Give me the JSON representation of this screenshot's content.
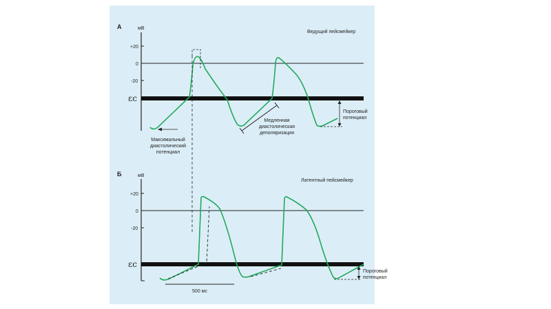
{
  "colors": {
    "background": "#dbeef7",
    "trace": "#22a85a",
    "axis": "#222222",
    "threshold_bar": "#111111"
  },
  "panel_a": {
    "letter": "А",
    "unit": "мВ",
    "ticks": [
      "+20",
      "0",
      "-20"
    ],
    "title": "Ведущий пейсмейкер",
    "threshold_symbol": "εc",
    "label_max_diastolic": [
      "Максимальный",
      "диастолический",
      "потенциал"
    ],
    "label_slow_depol": [
      "Медленная",
      "диастолическая",
      "деполяризация"
    ],
    "label_threshold": [
      "Пороговый",
      "потенциал"
    ]
  },
  "panel_b": {
    "letter": "Б",
    "unit": "мВ",
    "ticks": [
      "+20",
      "0",
      "-20"
    ],
    "title": "Латентный пейсмейкер",
    "threshold_symbol": "εc",
    "label_threshold": [
      "Пороговый",
      "потенциал"
    ],
    "scale_bar": "500 мс"
  }
}
